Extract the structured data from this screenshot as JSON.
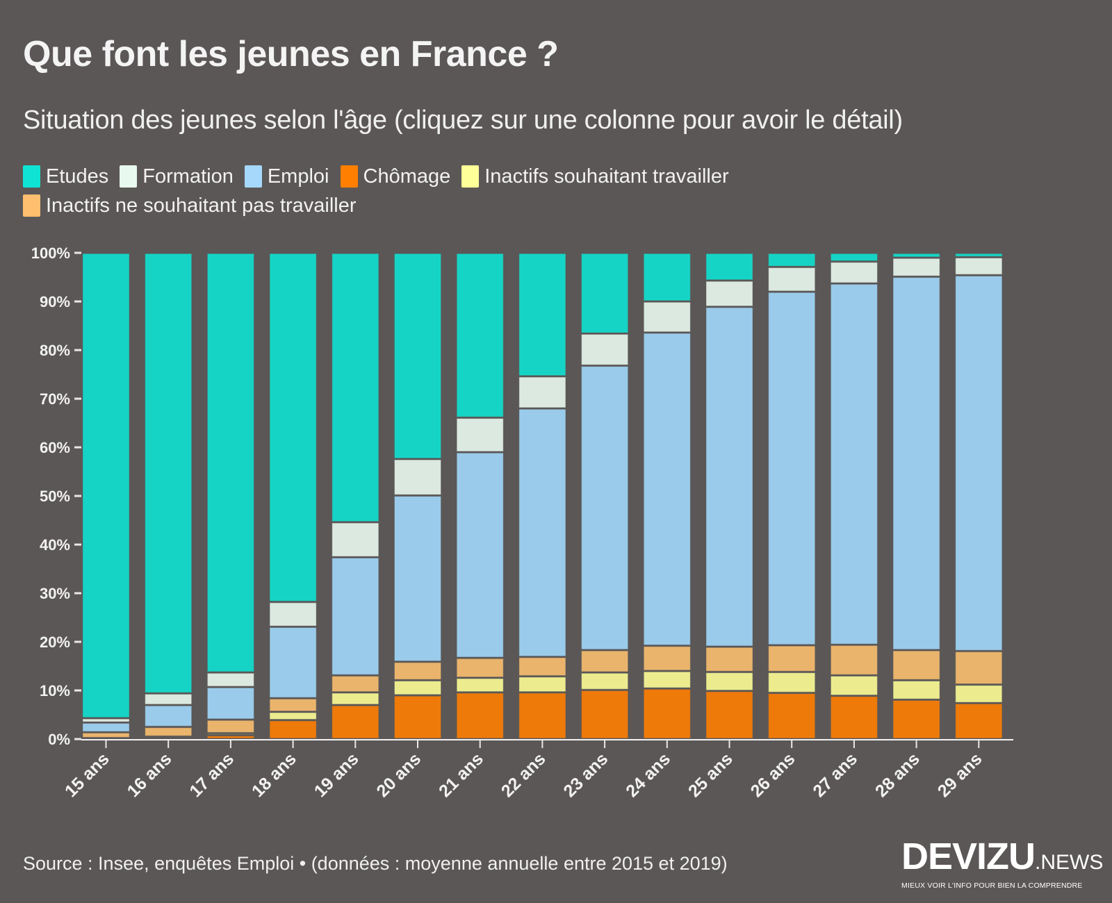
{
  "header": {
    "title": "Que font les jeunes en France ?",
    "subtitle": "Situation des jeunes selon l'âge (cliquez sur une colonne pour avoir le détail)"
  },
  "legend": [
    {
      "label": "Etudes",
      "color": "#0fe3d4"
    },
    {
      "label": "Formation",
      "color": "#e8faf0"
    },
    {
      "label": "Emploi",
      "color": "#a6d8fb"
    },
    {
      "label": "Chômage",
      "color": "#ff7f00"
    },
    {
      "label": "Inactifs souhaitant travailler",
      "color": "#ffff99"
    },
    {
      "label": "Inactifs ne souhaitant pas travailler",
      "color": "#ffbf6e"
    }
  ],
  "footer": {
    "source": "Source : Insee, enquêtes Emploi • (données : moyenne annuelle entre 2015 et 2019)"
  },
  "logo": {
    "name": "DEVIZU",
    "suffix": ".NEWS",
    "tagline": "MIEUX VOIR L'INFO POUR BIEN LA COMPRENDRE"
  },
  "chart_data": {
    "type": "bar",
    "stacked": true,
    "title": "Que font les jeunes en France ?",
    "subtitle": "Situation des jeunes selon l'âge (cliquez sur une colonne pour avoir le détail)",
    "xlabel": "",
    "ylabel": "",
    "ylim": [
      0,
      100
    ],
    "yticks": [
      0,
      10,
      20,
      30,
      40,
      50,
      60,
      70,
      80,
      90,
      100
    ],
    "ytick_labels": [
      "0%",
      "10%",
      "20%",
      "30%",
      "40%",
      "50%",
      "60%",
      "70%",
      "80%",
      "90%",
      "100%"
    ],
    "grid": false,
    "legend_position": "top-left",
    "categories": [
      "15 ans",
      "16 ans",
      "17 ans",
      "18 ans",
      "19 ans",
      "20 ans",
      "21 ans",
      "22 ans",
      "23 ans",
      "24 ans",
      "25 ans",
      "26 ans",
      "27 ans",
      "28 ans",
      "29 ans"
    ],
    "stack_order": "bottom-to-top",
    "series": [
      {
        "name": "Chômage",
        "color": "#ee7a0a",
        "values": [
          0.1,
          0.3,
          0.8,
          3.9,
          7.0,
          9.0,
          9.6,
          9.6,
          10.1,
          10.4,
          9.9,
          9.5,
          8.9,
          8.1,
          7.4
        ]
      },
      {
        "name": "Inactifs souhaitant travailler",
        "color": "#ecec8f",
        "values": [
          0.1,
          0.2,
          0.4,
          1.7,
          2.6,
          3.1,
          3.0,
          3.3,
          3.6,
          3.6,
          3.9,
          4.3,
          4.2,
          4.0,
          3.8
        ]
      },
      {
        "name": "Inactifs ne souhaitant pas travailler",
        "color": "#eab46c",
        "values": [
          1.2,
          2.0,
          2.8,
          2.8,
          3.5,
          3.8,
          4.1,
          4.0,
          4.6,
          5.2,
          5.2,
          5.5,
          6.3,
          6.2,
          6.9
        ]
      },
      {
        "name": "Emploi",
        "color": "#9acbeb",
        "values": [
          2.0,
          4.5,
          6.7,
          14.7,
          24.3,
          34.2,
          42.3,
          51.1,
          58.5,
          64.4,
          69.9,
          72.7,
          74.3,
          76.8,
          77.3
        ]
      },
      {
        "name": "Formation",
        "color": "#dbe9e0",
        "values": [
          0.9,
          2.4,
          3.0,
          5.1,
          7.2,
          7.5,
          7.1,
          6.6,
          6.6,
          6.4,
          5.4,
          5.1,
          4.5,
          3.9,
          3.7
        ]
      },
      {
        "name": "Etudes",
        "color": "#16d4c5",
        "values": [
          95.7,
          90.6,
          86.3,
          71.8,
          55.4,
          42.4,
          33.9,
          25.4,
          16.6,
          10.0,
          5.7,
          2.9,
          1.8,
          1.0,
          0.9
        ]
      }
    ]
  }
}
